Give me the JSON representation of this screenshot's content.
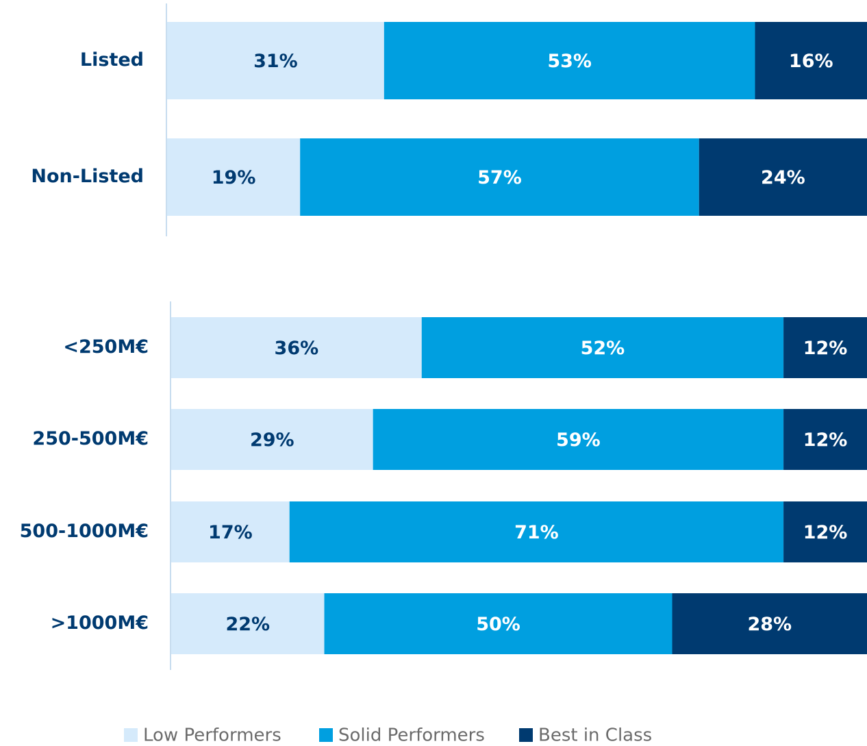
{
  "chart_data": [
    {
      "type": "barh",
      "categories": [
        "Listed",
        "Non-Listed"
      ],
      "xlim": [
        0,
        100
      ],
      "series": [
        {
          "name": "Low Performers",
          "color": "#d5eafb",
          "values": [
            31,
            19
          ],
          "value_labels": [
            "31%",
            "19%"
          ]
        },
        {
          "name": "Solid Performers",
          "color": "#009fe0",
          "values": [
            53,
            57
          ],
          "value_labels": [
            "53%",
            "57%"
          ]
        },
        {
          "name": "Best in Class",
          "color": "#003a70",
          "values": [
            16,
            24
          ],
          "value_labels": [
            "16%",
            "24%"
          ]
        }
      ]
    },
    {
      "type": "barh",
      "categories": [
        "<250M€",
        "250-500M€",
        "500-1000M€",
        ">1000M€"
      ],
      "xlim": [
        0,
        100
      ],
      "series": [
        {
          "color": "#d5eafb",
          "values": [
            36,
            29,
            17,
            22
          ],
          "value_labels": [
            "36%",
            "29%",
            "17%",
            "22%"
          ]
        },
        {
          "color": "#009fe0",
          "values": [
            52,
            59,
            71,
            50
          ],
          "value_labels": [
            "52%",
            "59%",
            "71%",
            "50%"
          ]
        },
        {
          "color": "#003a70",
          "values": [
            12,
            12,
            12,
            28
          ],
          "value_labels": [
            "12%",
            "12%",
            "12%",
            "28%"
          ]
        }
      ]
    }
  ]
}
